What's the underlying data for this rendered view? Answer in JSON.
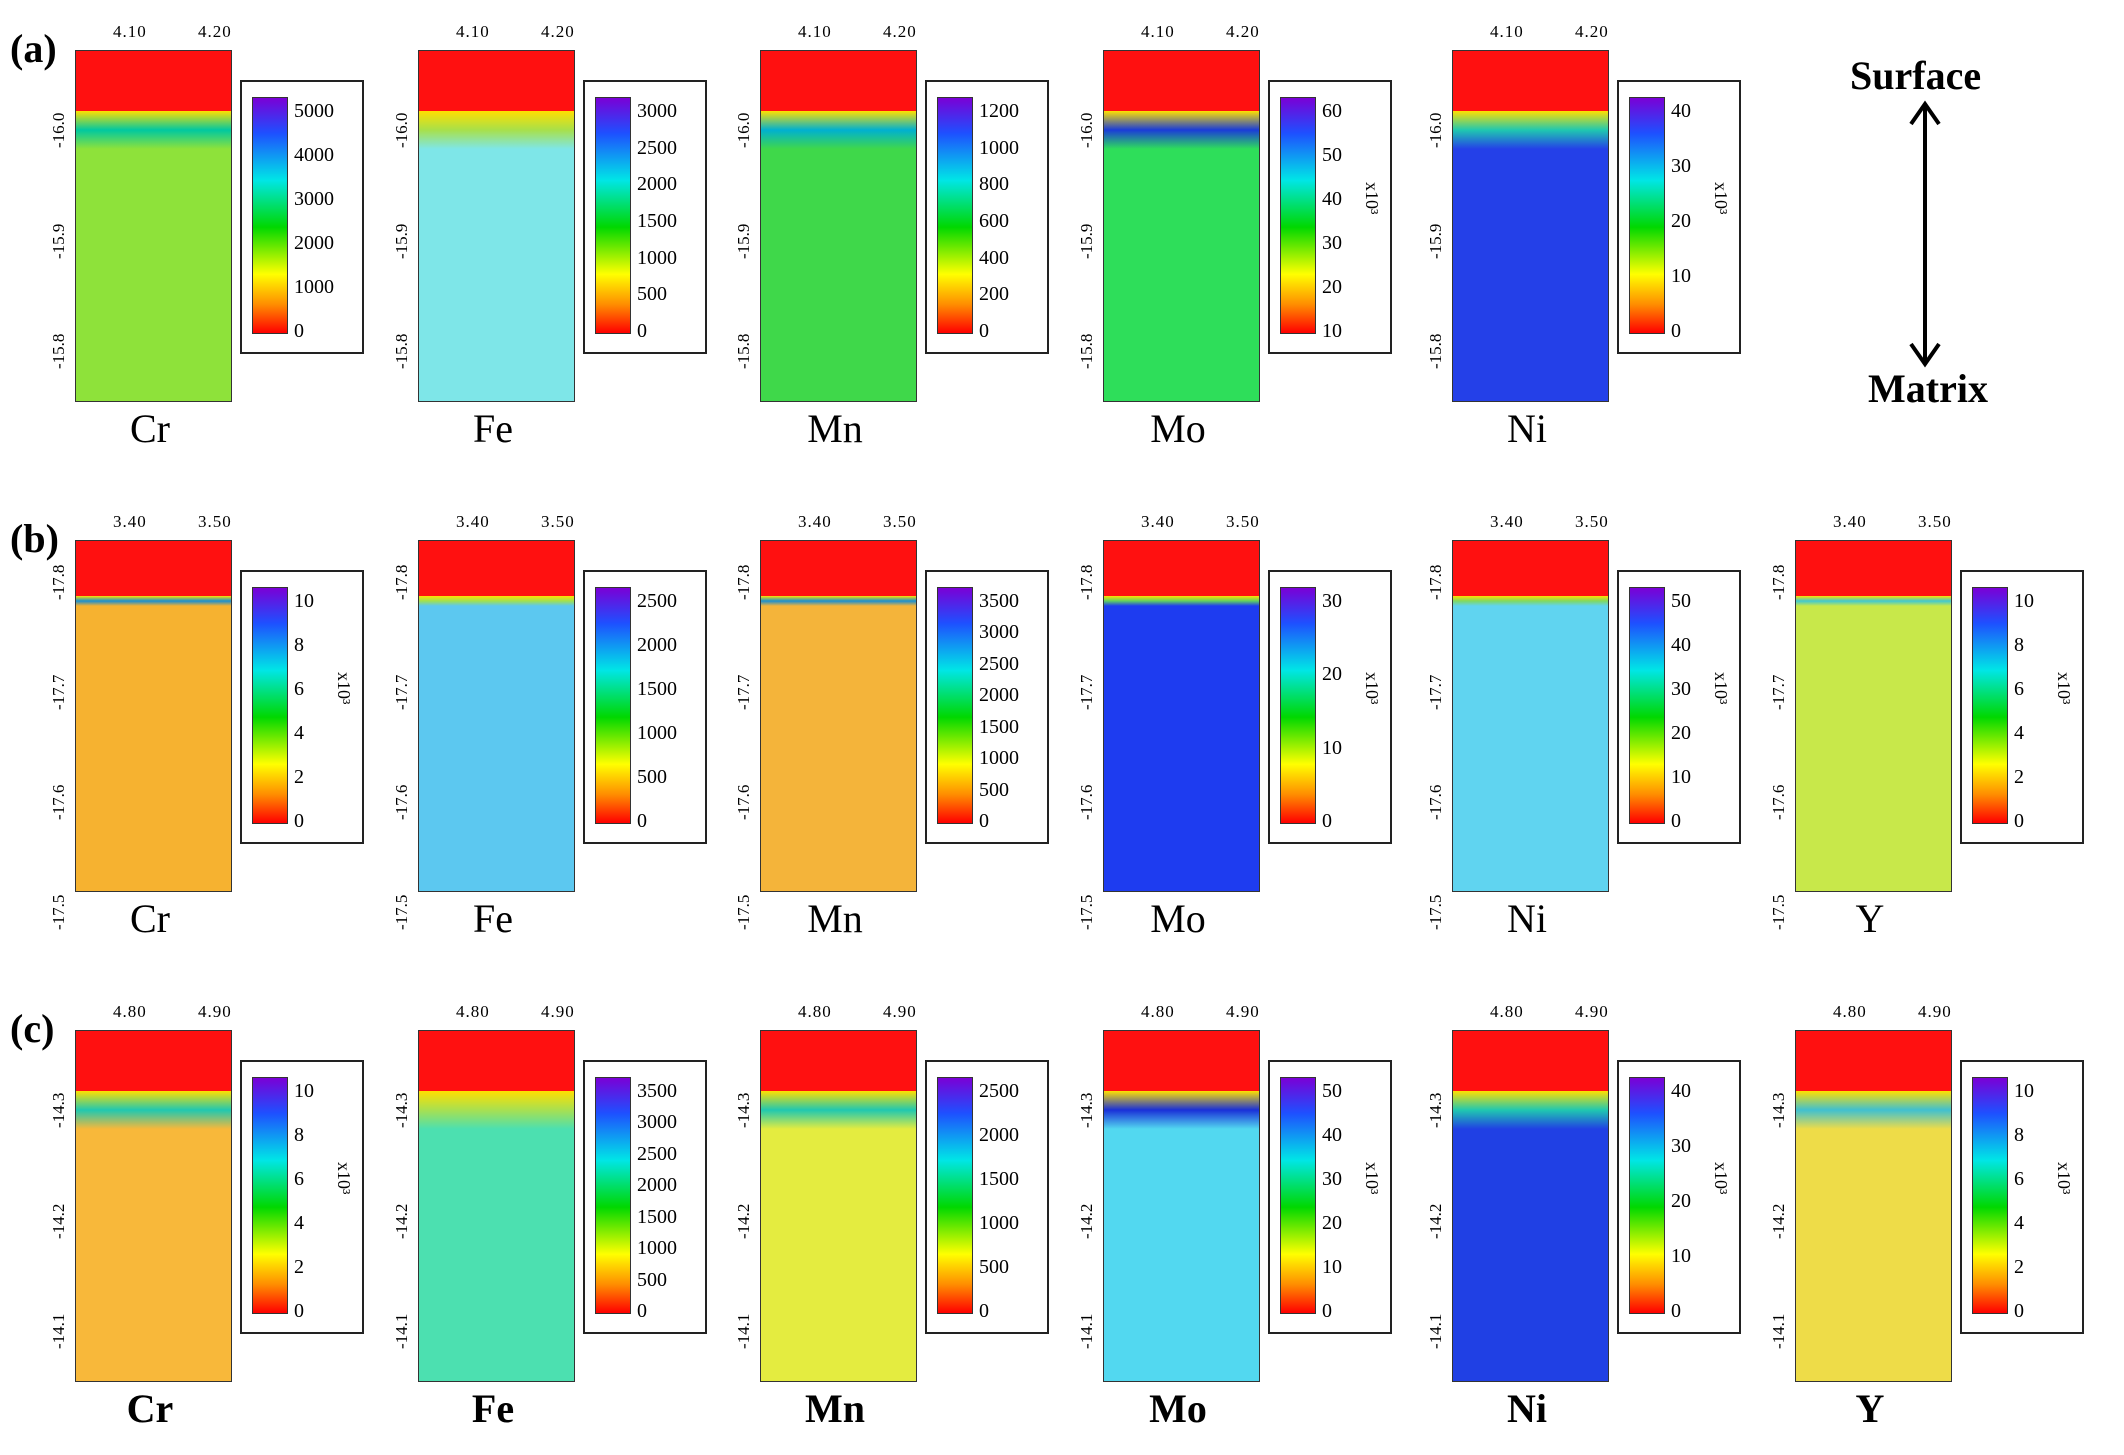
{
  "rows": [
    {
      "label": "(a)",
      "x_ticks": [
        "4.10",
        "4.20"
      ],
      "y_ticks": [
        "-16.0",
        "-15.9",
        "-15.8"
      ],
      "panels": [
        {
          "element": "Cr",
          "cb_ticks": [
            "0",
            "1000",
            "2000",
            "3000",
            "4000",
            "5000"
          ],
          "cb_unit": "",
          "body": "#8ee23a",
          "band": "#00c8a0"
        },
        {
          "element": "Fe",
          "cb_ticks": [
            "0",
            "500",
            "1000",
            "1500",
            "2000",
            "2500",
            "3000"
          ],
          "cb_unit": "",
          "body": "#7ee6e8",
          "band": "#a8e04a"
        },
        {
          "element": "Mn",
          "cb_ticks": [
            "0",
            "200",
            "400",
            "600",
            "800",
            "1000",
            "1200"
          ],
          "cb_unit": "",
          "body": "#3fd84a",
          "band": "#00b0d0"
        },
        {
          "element": "Mo",
          "cb_ticks": [
            "10",
            "20",
            "30",
            "40",
            "50",
            "60"
          ],
          "cb_unit": "x10³",
          "body": "#2ede5a",
          "band": "#1a3cd8"
        },
        {
          "element": "Ni",
          "cb_ticks": [
            "0",
            "10",
            "20",
            "30",
            "40"
          ],
          "cb_unit": "x10³",
          "body": "#2440e8",
          "band": "#20c8b0"
        }
      ]
    },
    {
      "label": "(b)",
      "x_ticks": [
        "3.40",
        "3.50"
      ],
      "y_ticks": [
        "-17.8",
        "-17.7",
        "-17.6",
        "-17.5"
      ],
      "panels": [
        {
          "element": "Cr",
          "cb_ticks": [
            "0",
            "2",
            "4",
            "6",
            "8",
            "10"
          ],
          "cb_unit": "x10³",
          "body": "#f6b230",
          "band": "#1a8fd0"
        },
        {
          "element": "Fe",
          "cb_ticks": [
            "0",
            "500",
            "1000",
            "1500",
            "2000",
            "2500"
          ],
          "cb_unit": "",
          "body": "#5cc8f0",
          "band": "#a0e050"
        },
        {
          "element": "Mn",
          "cb_ticks": [
            "0",
            "500",
            "1000",
            "1500",
            "2000",
            "2500",
            "3000",
            "3500"
          ],
          "cb_unit": "",
          "body": "#f4b43a",
          "band": "#1a8fd0"
        },
        {
          "element": "Mo",
          "cb_ticks": [
            "0",
            "10",
            "20",
            "30"
          ],
          "cb_unit": "x10³",
          "body": "#1e3cf0",
          "band": "#60d060"
        },
        {
          "element": "Ni",
          "cb_ticks": [
            "0",
            "10",
            "20",
            "30",
            "40",
            "50"
          ],
          "cb_unit": "x10³",
          "body": "#60d4f0",
          "band": "#80d860"
        },
        {
          "element": "Y",
          "cb_ticks": [
            "0",
            "2",
            "4",
            "6",
            "8",
            "10"
          ],
          "cb_unit": "x10³",
          "body": "#c8e84a",
          "band": "#40c8d0"
        }
      ]
    },
    {
      "label": "(c)",
      "x_ticks": [
        "4.80",
        "4.90"
      ],
      "y_ticks": [
        "-14.3",
        "-14.2",
        "-14.1"
      ],
      "panels": [
        {
          "element": "Cr",
          "cb_ticks": [
            "0",
            "2",
            "4",
            "6",
            "8",
            "10"
          ],
          "cb_unit": "x10³",
          "body": "#f8b83a",
          "band": "#20c8b0"
        },
        {
          "element": "Fe",
          "cb_ticks": [
            "0",
            "500",
            "1000",
            "1500",
            "2000",
            "2500",
            "3000",
            "3500"
          ],
          "cb_unit": "",
          "body": "#4ce0b0",
          "band": "#a8e050"
        },
        {
          "element": "Mn",
          "cb_ticks": [
            "0",
            "500",
            "1000",
            "1500",
            "2000",
            "2500"
          ],
          "cb_unit": "",
          "body": "#e4ec40",
          "band": "#20c8b0"
        },
        {
          "element": "Mo",
          "cb_ticks": [
            "0",
            "10",
            "20",
            "30",
            "40",
            "50"
          ],
          "cb_unit": "x10³",
          "body": "#52d8f0",
          "band": "#1a30d8"
        },
        {
          "element": "Ni",
          "cb_ticks": [
            "0",
            "10",
            "20",
            "30",
            "40"
          ],
          "cb_unit": "x10³",
          "body": "#2040e4",
          "band": "#20c8b0"
        },
        {
          "element": "Y",
          "cb_ticks": [
            "0",
            "2",
            "4",
            "6",
            "8",
            "10"
          ],
          "cb_unit": "x10³",
          "body": "#eedc48",
          "band": "#40c0d0"
        }
      ]
    }
  ],
  "legend": {
    "top": "Surface",
    "bottom": "Matrix"
  }
}
